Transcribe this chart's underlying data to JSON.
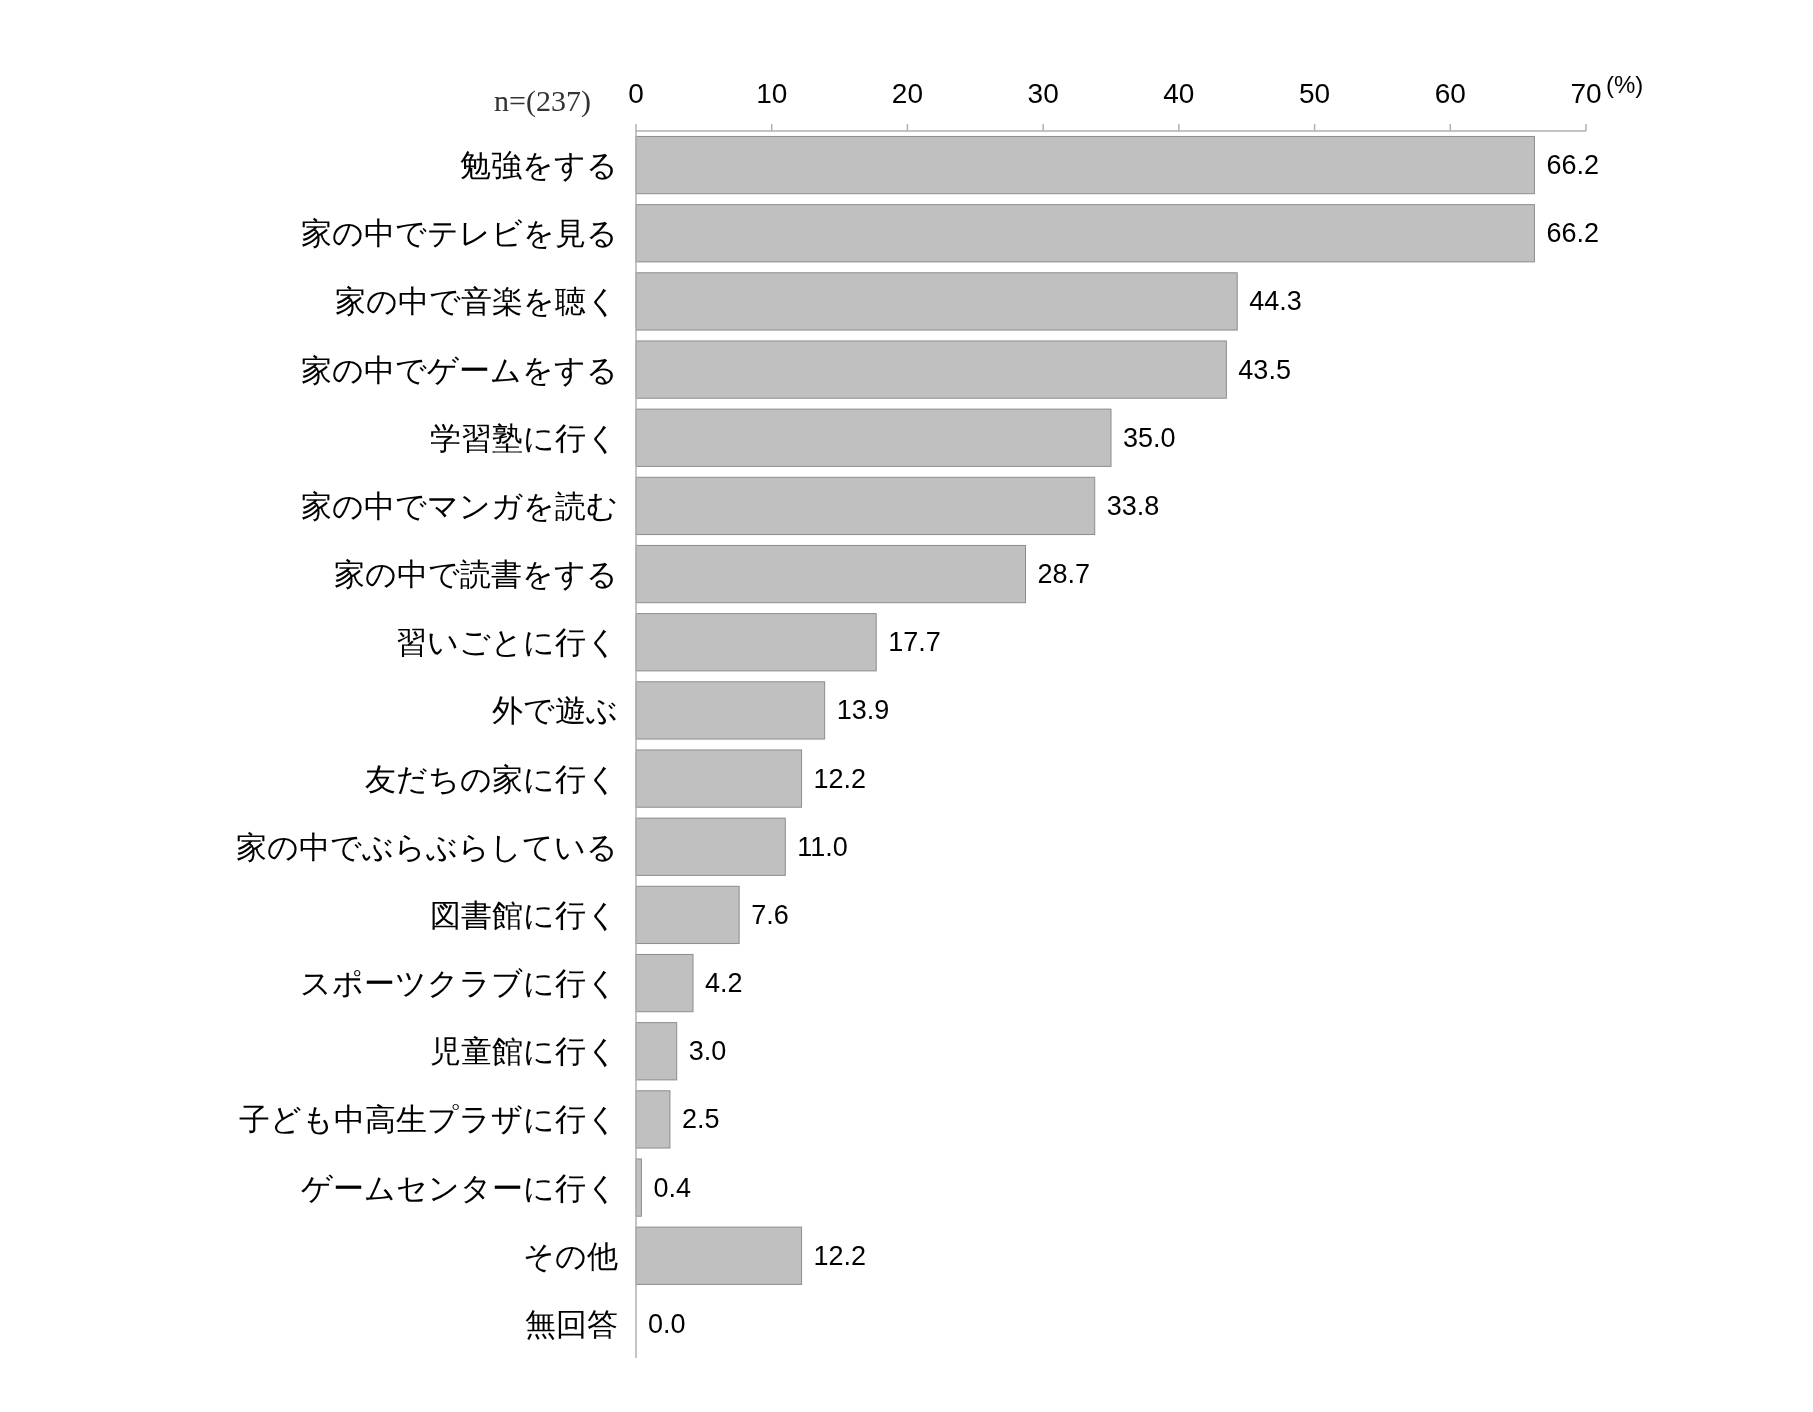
{
  "chart_data": {
    "type": "bar",
    "orientation": "horizontal",
    "xlabel": "(%)",
    "annotations": [
      "n=(237)"
    ],
    "categories": [
      "勉強をする",
      "家の中でテレビを見る",
      "家の中で音楽を聴く",
      "家の中でゲームをする",
      "学習塾に行く",
      "家の中でマンガを読む",
      "家の中で読書をする",
      "習いごとに行く",
      "外で遊ぶ",
      "友だちの家に行く",
      "家の中でぶらぶらしている",
      "図書館に行く",
      "スポーツクラブに行く",
      "児童館に行く",
      "子ども中高生プラザに行く",
      "ゲームセンターに行く",
      "その他",
      "無回答"
    ],
    "values": [
      66.2,
      66.2,
      44.3,
      43.5,
      35.0,
      33.8,
      28.7,
      17.7,
      13.9,
      12.2,
      11.0,
      7.6,
      4.2,
      3.0,
      2.5,
      0.4,
      12.2,
      0.0
    ],
    "value_labels": [
      "66.2",
      "66.2",
      "44.3",
      "43.5",
      "35.0",
      "33.8",
      "28.7",
      "17.7",
      "13.9",
      "12.2",
      "11.0",
      "7.6",
      "4.2",
      "3.0",
      "2.5",
      "0.4",
      "12.2",
      "0.0"
    ],
    "color": "#c0c0c0",
    "xlim": [
      0,
      70
    ],
    "xticks": [
      0,
      10,
      20,
      30,
      40,
      50,
      60,
      70
    ]
  }
}
